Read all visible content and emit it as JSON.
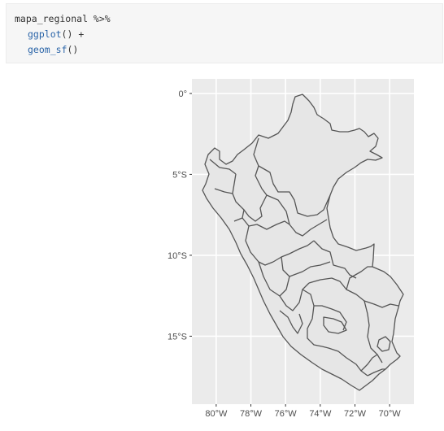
{
  "code": {
    "line1": "mapa_regional %>%",
    "line2_fn": "ggplot",
    "line2_rest": "() +",
    "line3_fn": "geom_sf",
    "line3_rest": "()"
  },
  "chart_data": {
    "type": "map",
    "geometry": "Peru regional boundaries (geom_sf)",
    "xlim": [
      -81.4,
      -68.6
    ],
    "ylim": [
      -19.2,
      0.9
    ],
    "x_ticks": [
      {
        "value": -80,
        "label": "80°W"
      },
      {
        "value": -78,
        "label": "78°W"
      },
      {
        "value": -76,
        "label": "76°W"
      },
      {
        "value": -74,
        "label": "74°W"
      },
      {
        "value": -72,
        "label": "72°W"
      },
      {
        "value": -70,
        "label": "70°W"
      }
    ],
    "y_ticks": [
      {
        "value": 0,
        "label": "0°"
      },
      {
        "value": -5,
        "label": "5°S"
      },
      {
        "value": -10,
        "label": "10°S"
      },
      {
        "value": -15,
        "label": "15°S"
      }
    ],
    "grid": true,
    "colors": {
      "panel": "#ebebeb",
      "grid": "#ffffff",
      "fill": "#e6e6e6",
      "border": "#555555"
    }
  }
}
